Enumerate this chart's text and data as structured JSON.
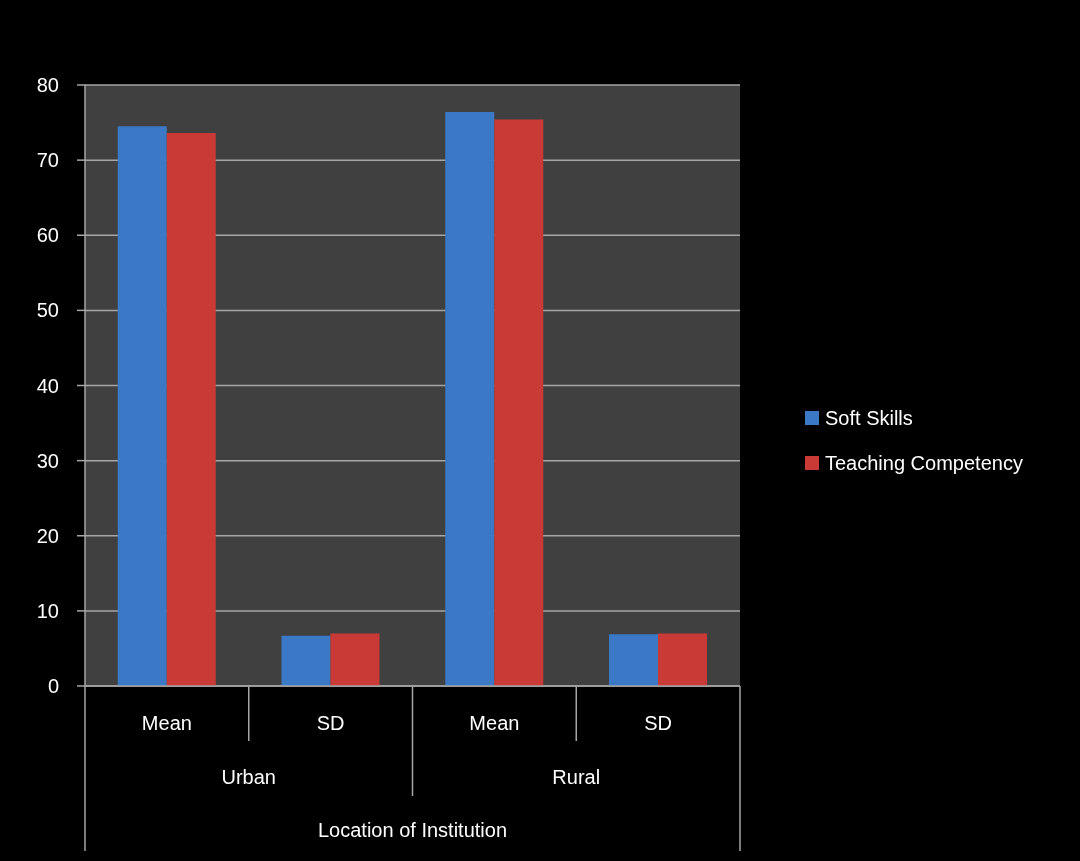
{
  "chart_data": {
    "type": "bar",
    "categories": [
      "Mean",
      "SD",
      "Mean",
      "SD"
    ],
    "series": [
      {
        "name": "Soft Skills",
        "color": "#3b78c6",
        "values": [
          74.5,
          6.7,
          76.4,
          6.9
        ]
      },
      {
        "name": "Teaching Competency",
        "color": "#c93a36",
        "values": [
          73.6,
          7.0,
          75.4,
          7.0
        ]
      }
    ],
    "xlabel": "Location of Institution",
    "annotations": [
      "Urban",
      "Rural"
    ],
    "ylim": [
      0,
      80
    ],
    "yticks": [
      0,
      10,
      20,
      30,
      40,
      50,
      60,
      70,
      80
    ],
    "grid": "y",
    "legend": "right"
  }
}
